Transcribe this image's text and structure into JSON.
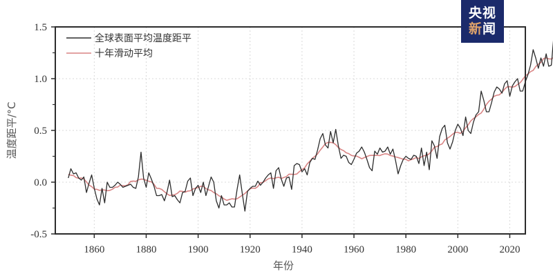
{
  "logo": {
    "line1": "央视",
    "line2_a": "新",
    "line2_b": "闻",
    "bg_color": "#1b2a6b"
  },
  "chart_data": {
    "type": "line",
    "title": "",
    "xlabel": "年份",
    "ylabel": "温度距平/°C",
    "xlim": [
      1845,
      2026
    ],
    "ylim": [
      -0.5,
      1.5
    ],
    "xticks": [
      1860,
      1880,
      1900,
      1920,
      1940,
      1960,
      1980,
      2000,
      2020
    ],
    "yticks": [
      -0.5,
      0.0,
      0.5,
      1.0,
      1.5
    ],
    "ytick_labels": [
      "-0.5",
      "0.0",
      "0.5",
      "1.0",
      "1.5"
    ],
    "grid": true,
    "legend_position": "upper left",
    "x_start": 1850,
    "series": [
      {
        "name": "全球表面平均温度距平",
        "color": "#2b2b2b",
        "values": [
          0.04,
          0.13,
          0.08,
          0.09,
          0.04,
          0.02,
          0.05,
          -0.1,
          -0.01,
          0.07,
          -0.06,
          -0.16,
          -0.22,
          -0.06,
          -0.2,
          0.0,
          -0.05,
          -0.05,
          -0.03,
          0.0,
          -0.02,
          -0.05,
          -0.04,
          -0.03,
          -0.02,
          -0.05,
          -0.06,
          0.05,
          0.29,
          0.04,
          -0.05,
          0.09,
          0.03,
          -0.04,
          -0.13,
          -0.13,
          -0.12,
          -0.18,
          -0.1,
          0.02,
          -0.14,
          -0.13,
          -0.17,
          -0.2,
          -0.1,
          -0.09,
          0.01,
          0.04,
          -0.13,
          -0.06,
          -0.03,
          -0.1,
          0.0,
          -0.13,
          -0.04,
          0.05,
          0.0,
          -0.18,
          -0.25,
          -0.13,
          -0.22,
          -0.22,
          -0.2,
          -0.24,
          -0.24,
          -0.07,
          0.07,
          -0.11,
          -0.28,
          -0.09,
          -0.06,
          -0.04,
          -0.04,
          0.01,
          -0.03,
          0.0,
          0.04,
          0.07,
          0.09,
          -0.06,
          0.11,
          0.14,
          0.03,
          -0.04,
          0.04,
          0.05,
          -0.07,
          0.16,
          0.18,
          0.17,
          0.1,
          0.13,
          0.07,
          0.19,
          0.23,
          0.22,
          0.31,
          0.42,
          0.47,
          0.36,
          0.33,
          0.49,
          0.38,
          0.51,
          0.35,
          0.23,
          0.26,
          0.25,
          0.19,
          0.17,
          0.22,
          0.28,
          0.3,
          0.34,
          0.29,
          0.22,
          0.14,
          0.11,
          0.3,
          0.27,
          0.33,
          0.29,
          0.3,
          0.34,
          0.27,
          0.32,
          0.21,
          0.08,
          0.16,
          0.22,
          0.25,
          0.23,
          0.22,
          0.26,
          0.25,
          0.18,
          0.33,
          0.16,
          0.29,
          0.12,
          0.4,
          0.35,
          0.23,
          0.44,
          0.52,
          0.55,
          0.38,
          0.32,
          0.39,
          0.5,
          0.56,
          0.52,
          0.45,
          0.63,
          0.5,
          0.47,
          0.58,
          0.65,
          0.68,
          0.88,
          0.79,
          0.68,
          0.68,
          0.77,
          0.87,
          0.92,
          0.9,
          0.86,
          0.95,
          0.98,
          0.83,
          0.93,
          0.97,
          1.0,
          0.88,
          0.88,
          0.97,
          1.04,
          1.13,
          1.28,
          1.2,
          1.1,
          1.2,
          1.12,
          1.24,
          1.12,
          1.13,
          1.42
        ]
      },
      {
        "name": "十年滑动平均",
        "color": "#d98484",
        "values": []
      }
    ],
    "moving_average_window": 10
  }
}
